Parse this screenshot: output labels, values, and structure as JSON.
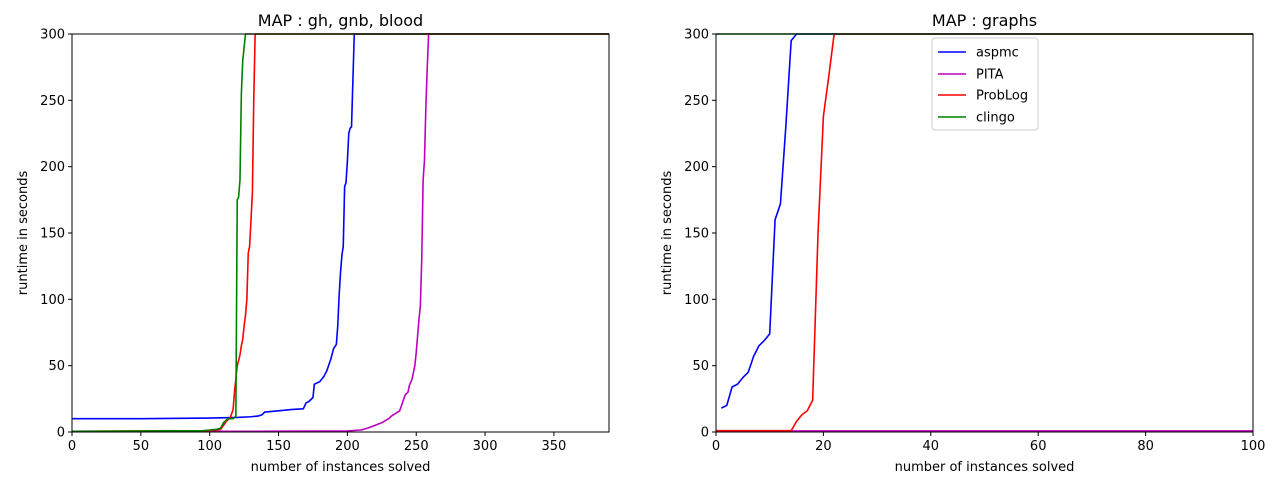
{
  "chart_data": [
    {
      "type": "line",
      "title": "MAP : gh, gnb, blood",
      "xlabel": "number of instances solved",
      "ylabel": "runtime in seconds",
      "xlim": [
        0,
        390
      ],
      "ylim": [
        0,
        300
      ],
      "xticks": [
        0,
        50,
        100,
        150,
        200,
        250,
        300,
        350
      ],
      "yticks": [
        0,
        50,
        100,
        150,
        200,
        250,
        300
      ],
      "series": [
        {
          "name": "aspmc",
          "color": "#0000ff",
          "x": [
            0,
            50,
            100,
            120,
            130,
            135,
            138,
            140,
            150,
            160,
            168,
            170,
            172,
            175,
            176,
            180,
            183,
            185,
            187,
            188,
            190,
            192,
            193,
            194,
            195,
            196,
            197,
            198,
            199,
            200,
            201,
            202,
            203,
            205,
            206,
            207,
            208,
            210,
            390
          ],
          "y": [
            10,
            10,
            10.5,
            11,
            11.5,
            12,
            13,
            15,
            16,
            17,
            17.5,
            22,
            23,
            26,
            36,
            38,
            42,
            46,
            52,
            55,
            63,
            66,
            80,
            103,
            120,
            133,
            140,
            185,
            188,
            204,
            225,
            229,
            230,
            300,
            300,
            300,
            300,
            300,
            300
          ]
        },
        {
          "name": "PITA",
          "color": "#bf00bf",
          "x": [
            0,
            100,
            150,
            200,
            210,
            215,
            220,
            225,
            230,
            232,
            235,
            238,
            240,
            242,
            244,
            245,
            247,
            249,
            250,
            252,
            253,
            254,
            255,
            256,
            257,
            258,
            259,
            260,
            261,
            262,
            263,
            264,
            390
          ],
          "y": [
            0.5,
            0.5,
            0.6,
            0.8,
            1.5,
            3,
            5,
            7,
            10,
            12,
            14,
            16,
            22,
            28,
            30,
            35,
            40,
            50,
            60,
            85,
            95,
            130,
            190,
            205,
            245,
            275,
            300,
            300,
            300,
            300,
            300,
            300,
            300
          ]
        },
        {
          "name": "ProbLog",
          "color": "#ff0000",
          "x": [
            0,
            100,
            108,
            110,
            112,
            113,
            115,
            117,
            118,
            120,
            122,
            123,
            124,
            125,
            126,
            127,
            128,
            129,
            130,
            131,
            132,
            133,
            134,
            135,
            390
          ],
          "y": [
            0.5,
            1,
            2,
            5,
            8,
            9,
            11,
            17,
            30,
            50,
            58,
            65,
            70,
            80,
            88,
            100,
            135,
            140,
            160,
            180,
            250,
            300,
            300,
            300,
            300
          ]
        },
        {
          "name": "clingo",
          "color": "#008000",
          "x": [
            0,
            95,
            100,
            105,
            108,
            109,
            110,
            112,
            113,
            115,
            117,
            118,
            119,
            120,
            121,
            122,
            123,
            124,
            125,
            126,
            127,
            390
          ],
          "y": [
            0.5,
            1,
            1.5,
            2,
            3,
            5,
            7,
            9,
            10,
            10,
            10,
            11,
            12,
            175,
            177,
            190,
            255,
            280,
            290,
            300,
            300,
            300
          ]
        }
      ]
    },
    {
      "type": "line",
      "title": "MAP : graphs",
      "xlabel": "number of instances solved",
      "ylabel": "runtime in seconds",
      "xlim": [
        0,
        100
      ],
      "ylim": [
        0,
        300
      ],
      "xticks": [
        0,
        20,
        40,
        60,
        80,
        100
      ],
      "yticks": [
        0,
        50,
        100,
        150,
        200,
        250,
        300
      ],
      "legend_position": "top-center",
      "legend": [
        "aspmc",
        "PITA",
        "ProbLog",
        "clingo"
      ],
      "series": [
        {
          "name": "aspmc",
          "color": "#0000ff",
          "x": [
            1,
            2,
            3,
            4,
            5,
            6,
            7,
            8,
            9,
            10,
            11,
            12,
            13,
            14,
            15,
            16,
            100
          ],
          "y": [
            18,
            20,
            34,
            36,
            41,
            45,
            57,
            65,
            69,
            74,
            160,
            172,
            230,
            295,
            300,
            300,
            300
          ]
        },
        {
          "name": "PITA",
          "color": "#bf00bf",
          "x": [
            0,
            100
          ],
          "y": [
            0.8,
            0.8
          ]
        },
        {
          "name": "ProbLog",
          "color": "#ff0000",
          "x": [
            0,
            14,
            15,
            16,
            17,
            18,
            19,
            20,
            21,
            22,
            100
          ],
          "y": [
            1,
            1,
            8,
            13,
            16,
            24,
            150,
            238,
            268,
            300,
            300
          ]
        },
        {
          "name": "clingo",
          "color": "#008000",
          "x": [
            0,
            100
          ],
          "y": [
            300,
            300
          ]
        }
      ]
    }
  ]
}
